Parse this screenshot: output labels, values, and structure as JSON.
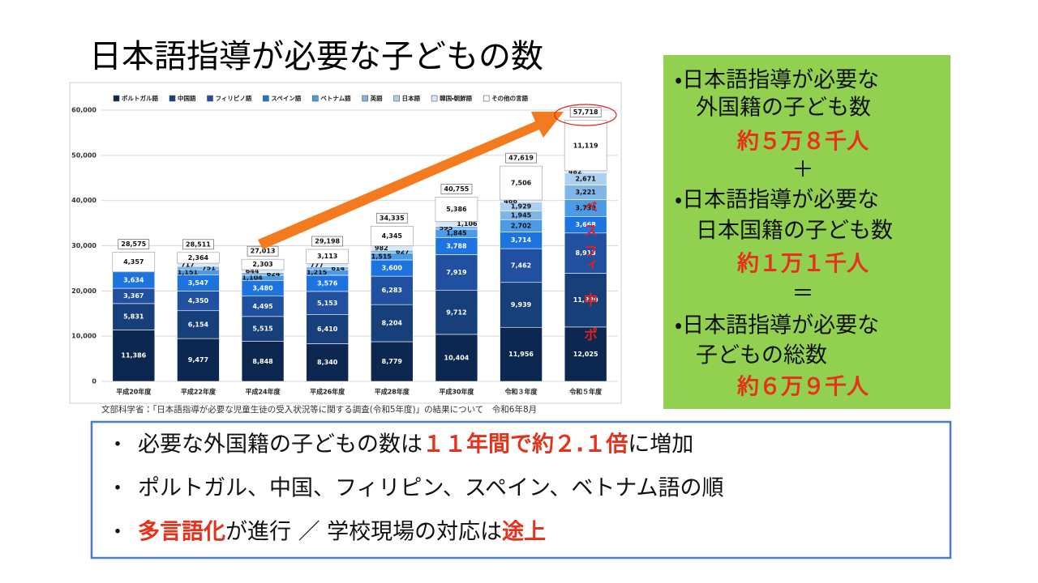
{
  "title": "日本語指導が必要な子どもの数",
  "chart_data": {
    "type": "stacked-bar",
    "categories": [
      "平成20年度",
      "平成22年度",
      "平成24年度",
      "平成26年度",
      "平成28年度",
      "平成30年度",
      "令和３年度",
      "令和５年度"
    ],
    "series": [
      {
        "name": "ポルトガル語",
        "color": "#0c2850",
        "values": [
          11386,
          9477,
          8848,
          8340,
          8779,
          10404,
          11956,
          12025
        ],
        "value_labels": [
          "11,386",
          "9,477",
          "8,848",
          "8,340",
          "8,779",
          "10,404",
          "11,956",
          "12,025"
        ]
      },
      {
        "name": "中国語",
        "color": "#173f7a",
        "values": [
          5831,
          6154,
          5515,
          6410,
          8204,
          9712,
          9939,
          11880
        ],
        "value_labels": [
          "5,831",
          "6,154",
          "5,515",
          "6,410",
          "8,204",
          "9,712",
          "9,939",
          "11,880"
        ]
      },
      {
        "name": "フィリピノ語",
        "color": "#2250a0",
        "values": [
          3367,
          4350,
          4495,
          5153,
          6283,
          7919,
          7462,
          8913
        ],
        "value_labels": [
          "3,367",
          "4,350",
          "4,495",
          "5,153",
          "6,283",
          "7,919",
          "7,462",
          "8,913"
        ]
      },
      {
        "name": "スペイン語",
        "color": "#1e74de",
        "values": [
          3634,
          3547,
          3480,
          3576,
          3600,
          3788,
          3714,
          3668
        ],
        "value_labels": [
          "3,634",
          "3,547",
          "3,480",
          "3,576",
          "3,600",
          "3,788",
          "3,714",
          "3,668"
        ]
      },
      {
        "name": "ベトナム語",
        "color": "#4c9be6",
        "values": [
          null,
          1151,
          1104,
          1215,
          1515,
          1845,
          2702,
          3739
        ],
        "value_labels": [
          null,
          "1,151",
          "1,104",
          "1,215",
          "1,515",
          "1,845",
          "2,702",
          "3,739"
        ]
      },
      {
        "name": "英語",
        "color": "#80b5e8",
        "values": [
          null,
          751,
          624,
          614,
          627,
          595,
          1945,
          3221
        ],
        "value_labels": [
          null,
          "751",
          "624",
          "614",
          "627",
          "595",
          "1,945",
          "3,221"
        ]
      },
      {
        "name": "日本語",
        "color": "#acd0f2",
        "values": [
          null,
          null,
          null,
          null,
          null,
          null,
          1929,
          2671
        ],
        "value_labels": [
          null,
          null,
          null,
          null,
          null,
          null,
          "1,929",
          "2,671"
        ]
      },
      {
        "name": "韓国・朝鮮語",
        "color": "#d8e8f8",
        "values": [
          null,
          717,
          644,
          777,
          982,
          1106,
          466,
          482
        ],
        "value_labels": [
          null,
          "717",
          "644",
          "777",
          "982",
          "1,106",
          "466",
          "482"
        ]
      },
      {
        "name": "その他の言語",
        "color": "#ffffff",
        "values": [
          4357,
          2364,
          2303,
          3113,
          4345,
          5386,
          7506,
          11119
        ],
        "value_labels": [
          "4,357",
          "2,364",
          "2,303",
          "3,113",
          "4,345",
          "5,386",
          "7,506",
          "11,119"
        ]
      }
    ],
    "totals": [
      28575,
      28511,
      27013,
      29198,
      34335,
      40755,
      47619,
      57718
    ],
    "total_labels": [
      "28,575",
      "28,511",
      "27,013",
      "29,198",
      "34,335",
      "40,755",
      "47,619",
      "57,718"
    ],
    "ylim": [
      0,
      60000
    ],
    "yticks": [
      0,
      {
        "value": 10000,
        "label": "10,000"
      },
      {
        "value": 20000,
        "label": "20,000"
      },
      {
        "value": 30000,
        "label": "30,000"
      },
      {
        "value": 40000,
        "label": "40,000"
      },
      {
        "value": 50000,
        "label": "50,000"
      },
      {
        "value": 60000,
        "label": "60,000"
      }
    ],
    "grid": true,
    "annotations": [
      "ベ",
      "ス",
      "フィ",
      "中",
      "ポ"
    ]
  },
  "source": "文部科学省：「日本語指導が必要な児童生徒の受入状況等に関する調査(令和5年度)」の結果について　令和6年8月",
  "summary_box": {
    "lines": [
      {
        "text": "・日本語指導が必要な",
        "emphasis": false
      },
      {
        "text": "外国籍の子ども数",
        "emphasis": false
      },
      {
        "text": "約５万８千人",
        "emphasis": true
      },
      {
        "text": "＋",
        "emphasis": false
      },
      {
        "text": "・日本語指導が必要な",
        "emphasis": false
      },
      {
        "text": "日本国籍の子ども数",
        "emphasis": false
      },
      {
        "text": "約１万１千人",
        "emphasis": true
      },
      {
        "text": "＝",
        "emphasis": false
      },
      {
        "text": "・日本語指導が必要な",
        "emphasis": false
      },
      {
        "text": "子どもの総数",
        "emphasis": false
      },
      {
        "text": "約６万９千人",
        "emphasis": true
      }
    ]
  },
  "bullet_mark": "・",
  "bullets": [
    [
      {
        "text": "必要な外国籍の子どもの数は",
        "emphasis": false
      },
      {
        "text": "１１年間で約２.１倍",
        "emphasis": true
      },
      {
        "text": "に増加",
        "emphasis": false
      }
    ],
    [
      {
        "text": "ポルトガル、中国、フィリピン、スペイン、ベトナム語の順",
        "emphasis": false
      }
    ],
    [
      {
        "text": "多言語化",
        "emphasis": true
      },
      {
        "text": "が進行 ／ 学校現場の対応は",
        "emphasis": false
      },
      {
        "text": "途上",
        "emphasis": true
      }
    ]
  ]
}
